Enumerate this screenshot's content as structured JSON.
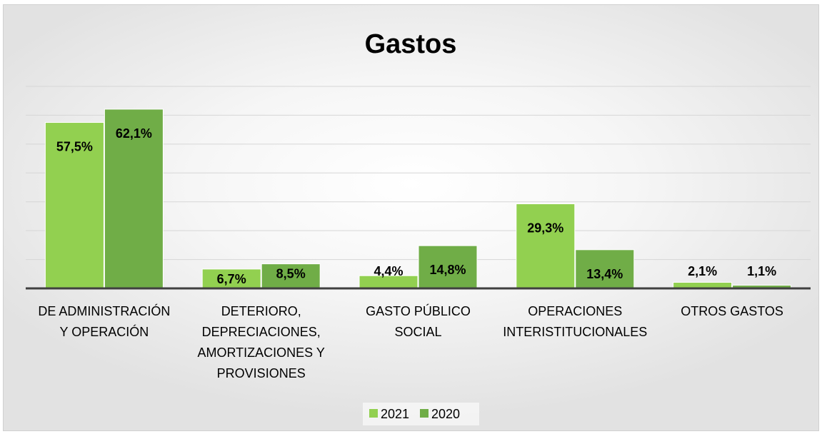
{
  "chart_data": {
    "type": "bar",
    "title": "Gastos",
    "categories": [
      [
        "DE ADMINISTRACIÓN",
        "Y OPERACIÓN"
      ],
      [
        "DETERIORO,",
        "DEPRECIACIONES,",
        "AMORTIZACIONES Y",
        "PROVISIONES"
      ],
      [
        "GASTO PÚBLICO",
        "SOCIAL"
      ],
      [
        "OPERACIONES",
        "INTERISTITUCIONALES"
      ],
      [
        "OTROS GASTOS"
      ]
    ],
    "series": [
      {
        "name": "2021",
        "color": "#92d050",
        "values": [
          57.5,
          6.7,
          4.4,
          29.3,
          2.1
        ],
        "labels": [
          "57,5%",
          "6,7%",
          "4,4%",
          "29,3%",
          "2,1%"
        ]
      },
      {
        "name": "2020",
        "color": "#70ad47",
        "values": [
          62.1,
          8.5,
          14.8,
          13.4,
          1.1
        ],
        "labels": [
          "62,1%",
          "8,5%",
          "14,8%",
          "13,4%",
          "1,1%"
        ]
      }
    ],
    "ylim": [
      0,
      70
    ],
    "grid": true,
    "legend": "bottom"
  }
}
